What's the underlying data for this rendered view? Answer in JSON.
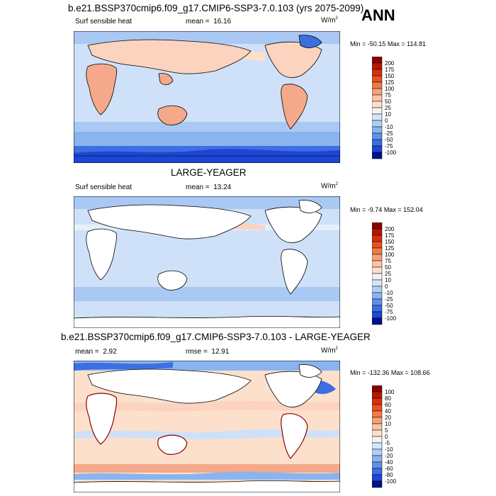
{
  "header": {
    "title": "b.e21.BSSP370cmip6.f09_g17.CMIP6-SSP3-7.0.103 (yrs 2075-2099)",
    "season": "ANN"
  },
  "panels": [
    {
      "id": "case",
      "title": "",
      "variable": "Surf sensible heat",
      "stat_label": "mean =",
      "stat_value": "16.16",
      "units": "W/m",
      "units_exp": "2",
      "min_label": "Min =",
      "min_value": "-50.15",
      "max_label": "Max =",
      "max_value": "114.81",
      "colorbar": {
        "levels": [
          "200",
          "175",
          "150",
          "125",
          "100",
          "75",
          "50",
          "25",
          "10",
          "0",
          "-10",
          "-25",
          "-50",
          "-75",
          "-100"
        ],
        "colors": [
          "#8b0000",
          "#b21a00",
          "#d73010",
          "#e8501e",
          "#f07a4a",
          "#f6a07c",
          "#fac4a6",
          "#fde0cc",
          "#f2f2f2",
          "#d4e6fb",
          "#b0cff6",
          "#8ab4f0",
          "#5e92e8",
          "#3a6fe0",
          "#1e45d6",
          "#00128c"
        ]
      }
    },
    {
      "id": "control",
      "title": "LARGE-YEAGER",
      "variable": "Surf sensible heat",
      "stat_label": "mean =",
      "stat_value": "13.24",
      "units": "W/m",
      "units_exp": "2",
      "min_label": "Min =",
      "min_value": "-9.74",
      "max_label": "Max =",
      "max_value": "152.04",
      "colorbar": {
        "levels": [
          "200",
          "175",
          "150",
          "125",
          "100",
          "75",
          "50",
          "25",
          "10",
          "0",
          "-10",
          "-25",
          "-50",
          "-75",
          "-100"
        ],
        "colors": [
          "#8b0000",
          "#b21a00",
          "#d73010",
          "#e8501e",
          "#f07a4a",
          "#f6a07c",
          "#fac4a6",
          "#fde0cc",
          "#f2f2f2",
          "#d4e6fb",
          "#b0cff6",
          "#8ab4f0",
          "#5e92e8",
          "#3a6fe0",
          "#1e45d6",
          "#00128c"
        ]
      }
    },
    {
      "id": "diff",
      "title": "b.e21.BSSP370cmip6.f09_g17.CMIP6-SSP3-7.0.103 - LARGE-YEAGER",
      "variable": "",
      "stat_label": "mean =",
      "stat_value": "2.92",
      "rmse_label": "rmse =",
      "rmse_value": "12.91",
      "units": "W/m",
      "units_exp": "2",
      "min_label": "Min =",
      "min_value": "-132.36",
      "max_label": "Max =",
      "max_value": "108.66",
      "colorbar": {
        "levels": [
          "100",
          "80",
          "60",
          "40",
          "20",
          "10",
          "5",
          "0",
          "-5",
          "-10",
          "-20",
          "-40",
          "-60",
          "-80",
          "-100"
        ],
        "colors": [
          "#8b0000",
          "#b21a00",
          "#d73010",
          "#e8501e",
          "#f07a4a",
          "#f6a07c",
          "#fac4a6",
          "#fde0cc",
          "#f2f2f2",
          "#d4e6fb",
          "#b0cff6",
          "#8ab4f0",
          "#5e92e8",
          "#3a6fe0",
          "#1e45d6",
          "#00128c"
        ]
      }
    }
  ],
  "colors": {
    "land_blank": "#ffffff",
    "ocean_light": "#cfe1f8",
    "ocean_mid": "#a9c8f3",
    "warm_light": "#fbd3bf",
    "warm_mid": "#f5a98a",
    "cold_strong": "#3c6fe0",
    "outline": "#000000"
  }
}
